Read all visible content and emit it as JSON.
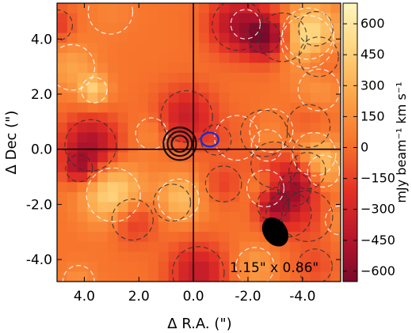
{
  "chart_data": {
    "type": "heatmap",
    "title": "",
    "xlabel": "Δ R.A. (\")",
    "ylabel": "Δ Dec (\")",
    "xlim": [
      5.0,
      -5.4
    ],
    "ylim": [
      -4.8,
      5.3
    ],
    "x_ticks": [
      4.0,
      2.0,
      0.0,
      -2.0,
      -4.0
    ],
    "x_tick_labels": [
      "4.0",
      "2.0",
      "0.0",
      "-2.0",
      "-4.0"
    ],
    "y_ticks": [
      4.0,
      2.0,
      0.0,
      -2.0,
      -4.0
    ],
    "y_tick_labels": [
      "4.0",
      "2.0",
      "0.0",
      "-2.0",
      "-4.0"
    ],
    "grid": false,
    "colorbar": {
      "label": "mJy beam⁻¹ km s⁻¹",
      "range": [
        -650,
        700
      ],
      "ticks": [
        600,
        450,
        300,
        150,
        0,
        -150,
        -300,
        -450,
        -600
      ],
      "tick_labels": [
        "600",
        "450",
        "300",
        "150",
        "0",
        "−150",
        "−300",
        "−450",
        "−600"
      ],
      "colormap": "YlOrRd"
    },
    "crosshair": {
      "x": 0.0,
      "y": 0.0
    },
    "beam": {
      "label": "1.15\" x 0.86\"",
      "x": -3.0,
      "y": -3.0,
      "major": 1.15,
      "minor": 0.86
    },
    "continuum_contours": {
      "color": "#111111",
      "x": 0.5,
      "y": 0.2,
      "radii": [
        0.3,
        0.45,
        0.6
      ]
    },
    "line_contour": {
      "color": "#1a2fcc",
      "x": -0.6,
      "y": 0.35,
      "radius": 0.32
    },
    "colors": {
      "low": "#7a0a2a",
      "mid": "#e8402a",
      "high": "#fff4b8"
    }
  }
}
